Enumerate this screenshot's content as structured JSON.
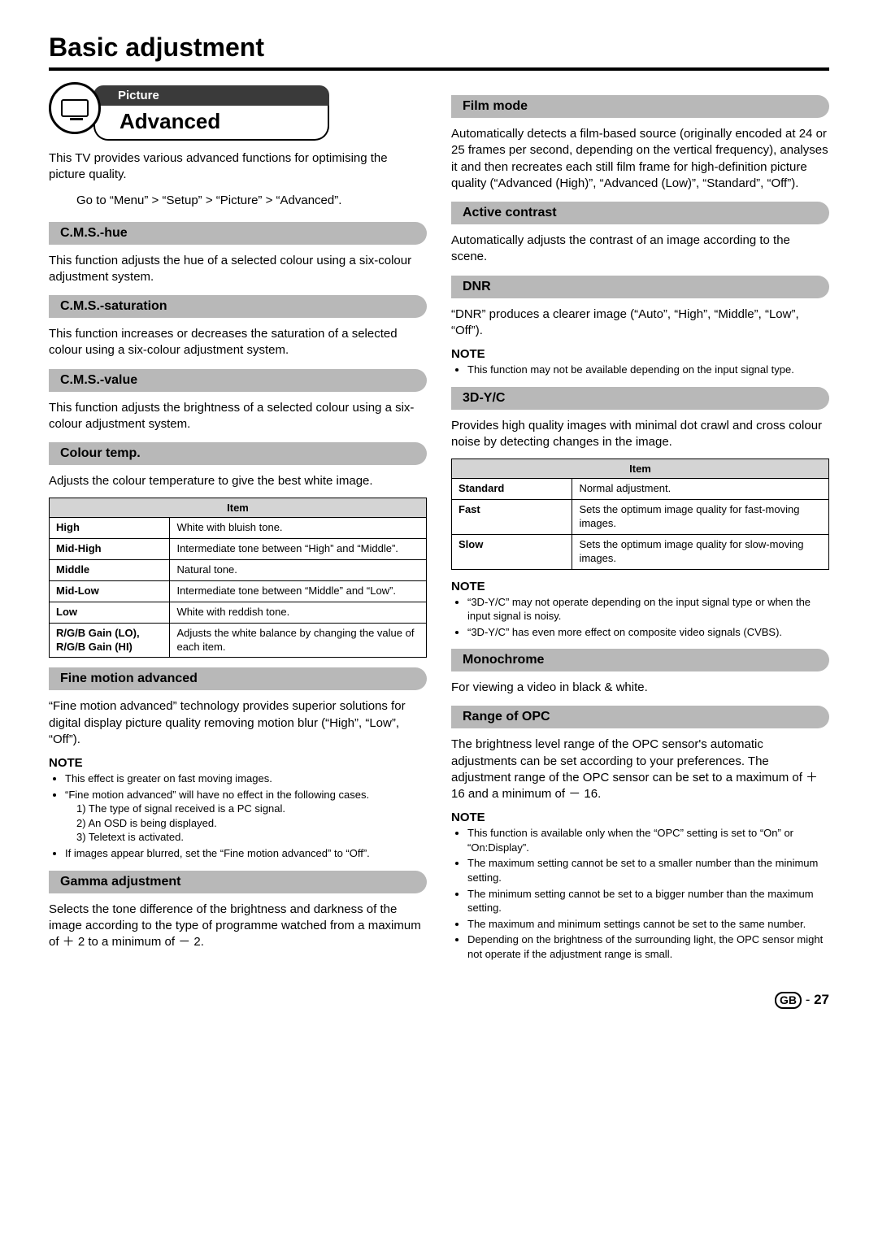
{
  "page_title": "Basic adjustment",
  "chip": {
    "top": "Picture",
    "main": "Advanced"
  },
  "intro": "This TV provides various advanced functions for optimising the picture quality.",
  "nav_path": "Go to “Menu” > “Setup” > “Picture” > “Advanced”.",
  "left_sections": {
    "cms_hue": {
      "title": "C.M.S.-hue",
      "text": "This function adjusts the hue of a selected colour using a six-colour adjustment system."
    },
    "cms_sat": {
      "title": "C.M.S.-saturation",
      "text": "This function increases or decreases the saturation of a selected colour using a six-colour adjustment system."
    },
    "cms_val": {
      "title": "C.M.S.-value",
      "text": "This function adjusts the brightness of a selected colour using a six-colour adjustment system."
    },
    "colour_temp": {
      "title": "Colour temp.",
      "text": "Adjusts the colour temperature to give the best white image.",
      "table_header": "Item",
      "rows": [
        {
          "label": "High",
          "desc": "White with bluish tone."
        },
        {
          "label": "Mid-High",
          "desc": "Intermediate tone between “High” and “Middle”."
        },
        {
          "label": "Middle",
          "desc": "Natural tone."
        },
        {
          "label": "Mid-Low",
          "desc": "Intermediate tone between “Middle” and “Low”."
        },
        {
          "label": "Low",
          "desc": "White with reddish tone."
        },
        {
          "label": "R/G/B Gain (LO), R/G/B Gain (HI)",
          "desc": "Adjusts the white balance by changing the value of each item."
        }
      ]
    },
    "fine_motion": {
      "title": "Fine motion advanced",
      "text": "“Fine motion advanced” technology provides superior solutions for digital display picture quality removing motion blur (“High”, “Low”, “Off”).",
      "note_label": "NOTE",
      "note1": "This effect is greater on fast moving images.",
      "note2": "“Fine motion advanced” will have no effect in the following cases.",
      "note2_sub": [
        "1) The type of signal received is a PC signal.",
        "2) An OSD is being displayed.",
        "3) Teletext is activated."
      ],
      "note3": "If images appear blurred, set the “Fine motion advanced” to “Off”."
    },
    "gamma": {
      "title": "Gamma adjustment",
      "text": "Selects the tone difference of the brightness and darkness of the image according to the type of programme watched from a maximum of ＋ 2 to a minimum of － 2."
    }
  },
  "right_sections": {
    "film_mode": {
      "title": "Film mode",
      "text": "Automatically detects a film-based source (originally encoded at 24 or 25 frames per second, depending on the vertical frequency), analyses it and then recreates each still film frame for high-definition picture quality (“Advanced (High)”, “Advanced (Low)”, “Standard”, “Off”)."
    },
    "active_contrast": {
      "title": "Active contrast",
      "text": "Automatically adjusts the contrast of an image according to the scene."
    },
    "dnr": {
      "title": "DNR",
      "text": "“DNR” produces a clearer image (“Auto”, “High”, “Middle”, “Low”, “Off”).",
      "note_label": "NOTE",
      "note1": "This function may not be available depending on the input signal type."
    },
    "3dyc": {
      "title": "3D-Y/C",
      "text": "Provides high quality images with minimal dot crawl and cross colour noise by detecting changes in the image.",
      "table_header": "Item",
      "rows": [
        {
          "label": "Standard",
          "desc": "Normal adjustment."
        },
        {
          "label": "Fast",
          "desc": "Sets the optimum image quality for fast-moving images."
        },
        {
          "label": "Slow",
          "desc": "Sets the optimum image quality for slow-moving images."
        }
      ],
      "note_label": "NOTE",
      "note1": "“3D-Y/C” may not operate depending on the input signal type or when the input signal is noisy.",
      "note2": "“3D-Y/C” has even more effect on composite video signals (CVBS)."
    },
    "monochrome": {
      "title": "Monochrome",
      "text": "For viewing a video in black & white."
    },
    "opc": {
      "title": "Range of OPC",
      "text": "The brightness level range of the OPC sensor's automatic adjustments can be set according to your preferences. The adjustment range of the OPC sensor can be set to a maximum of ＋ 16 and a minimum of － 16.",
      "note_label": "NOTE",
      "notes": [
        "This function is available only when the “OPC” setting is set to “On” or “On:Display”.",
        "The maximum setting cannot be set to a smaller number than the minimum setting.",
        "The minimum setting cannot be set to a bigger number than the maximum setting.",
        "The maximum and minimum settings cannot be set to the same number.",
        "Depending on the brightness of the surrounding light, the OPC sensor might not operate if the adjustment range is small."
      ]
    }
  },
  "footer": {
    "region": "GB",
    "sep": " - ",
    "page": "27"
  }
}
